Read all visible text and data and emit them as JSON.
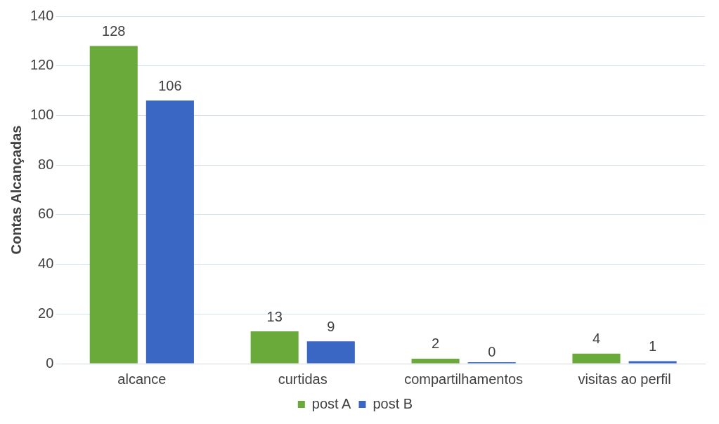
{
  "chart_data": {
    "type": "bar",
    "ylabel": "Contas Alcançadas",
    "categories": [
      "alcance",
      "curtidas",
      "compartilhamentos",
      "visitas ao perfil"
    ],
    "series": [
      {
        "name": "post A",
        "color": "#6aaa3a",
        "values": [
          128,
          13,
          2,
          4
        ]
      },
      {
        "name": "post B",
        "color": "#3a66c4",
        "values": [
          106,
          9,
          0,
          1
        ]
      }
    ],
    "ylim": [
      0,
      140
    ],
    "yticks": [
      0,
      20,
      40,
      60,
      80,
      100,
      120,
      140
    ],
    "grid": "y",
    "legend": "bottom",
    "data_labels": true
  }
}
